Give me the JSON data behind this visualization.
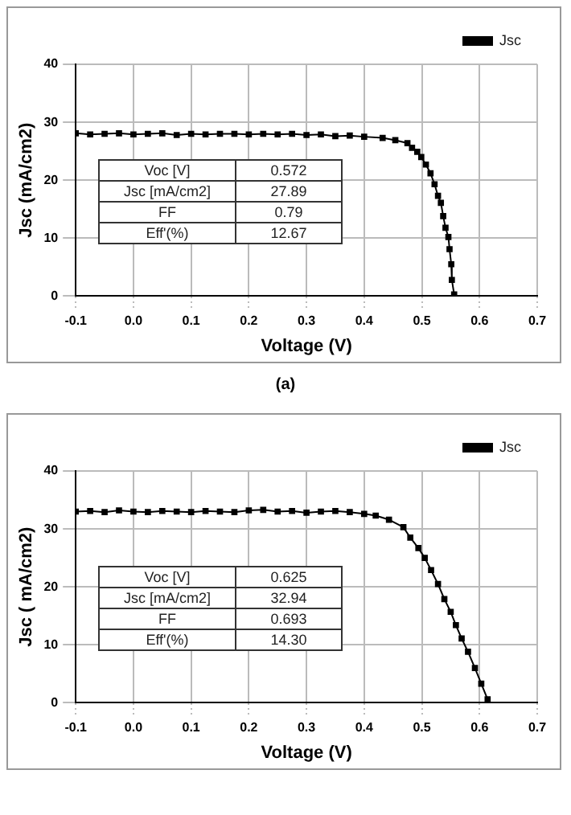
{
  "chart_data": [
    {
      "type": "line",
      "xlabel": "Voltage (V)",
      "ylabel": "Jsc (mA/cm2)",
      "legend": "top right",
      "grid": true,
      "marker": "square",
      "line_style": "solid",
      "xlim": [
        -0.1,
        0.7
      ],
      "ylim": [
        0,
        40
      ],
      "xticks": [
        -0.1,
        {
          "value": 0,
          "label": "0.0"
        },
        0.1,
        0.2,
        0.3,
        0.4,
        0.5,
        0.6,
        0.7
      ],
      "yticks": [
        0,
        10,
        20,
        30,
        40
      ],
      "annotations": [
        "Voc [V]",
        "0.572",
        "Jsc [mA/cm2]",
        "27.89",
        "FF",
        "0.79",
        "Eff'(%)",
        "12.67",
        "(a)"
      ],
      "series": [
        {
          "name": "Jsc",
          "color": "#000000",
          "x": [
            -0.1,
            -0.075,
            -0.05,
            -0.025,
            0,
            0.025,
            0.05,
            0.075,
            0.1,
            0.125,
            0.15,
            0.175,
            0.2,
            0.225,
            0.25,
            0.275,
            0.3,
            0.325,
            0.35,
            0.375,
            0.4,
            0.432,
            0.454,
            0.475,
            0.483,
            0.492,
            0.499,
            0.507,
            0.515,
            0.522,
            0.528,
            0.533,
            0.537,
            0.541,
            0.546,
            0.548,
            0.551,
            0.552,
            0.556
          ],
          "values": [
            28.1,
            27.9,
            28.0,
            28.1,
            27.9,
            28.0,
            28.1,
            27.8,
            28.0,
            27.9,
            28.0,
            28.0,
            27.9,
            28.0,
            27.9,
            28.0,
            27.8,
            27.9,
            27.6,
            27.7,
            27.5,
            27.3,
            26.9,
            26.4,
            25.6,
            24.9,
            24.0,
            22.7,
            21.2,
            19.3,
            17.3,
            16.1,
            13.8,
            11.8,
            10.2,
            8.1,
            5.5,
            2.8,
            0.3
          ]
        }
      ]
    },
    {
      "type": "line",
      "xlabel": "Voltage (V)",
      "ylabel": "Jsc ( mA/cm2)",
      "legend": "top right",
      "grid": true,
      "marker": "square",
      "line_style": "solid",
      "xlim": [
        -0.1,
        0.7
      ],
      "ylim": [
        0,
        40
      ],
      "xticks": [
        -0.1,
        {
          "value": 0,
          "label": "0.0"
        },
        0.1,
        0.2,
        0.3,
        0.4,
        0.5,
        0.6,
        0.7
      ],
      "yticks": [
        0,
        10,
        20,
        30,
        40
      ],
      "annotations": [
        "Voc [V]",
        "0.625",
        "Jsc [mA/cm2]",
        "32.94",
        "FF",
        "0.693",
        "Eff'(%)",
        "14.30"
      ],
      "series": [
        {
          "name": "Jsc",
          "color": "#000000",
          "x": [
            -0.1,
            -0.075,
            -0.05,
            -0.025,
            0,
            0.025,
            0.05,
            0.075,
            0.1,
            0.125,
            0.15,
            0.175,
            0.2,
            0.225,
            0.25,
            0.275,
            0.3,
            0.325,
            0.35,
            0.375,
            0.4,
            0.42,
            0.443,
            0.468,
            0.48,
            0.494,
            0.505,
            0.516,
            0.528,
            0.539,
            0.55,
            0.559,
            0.569,
            0.58,
            0.592,
            0.603,
            0.614
          ],
          "values": [
            33.0,
            33.1,
            32.9,
            33.2,
            33.0,
            32.9,
            33.1,
            33.0,
            32.9,
            33.1,
            33.0,
            32.9,
            33.2,
            33.3,
            33.0,
            33.1,
            32.8,
            33.0,
            33.1,
            32.9,
            32.6,
            32.3,
            31.6,
            30.3,
            28.5,
            26.7,
            25.0,
            22.9,
            20.5,
            17.9,
            15.7,
            13.4,
            11.1,
            8.8,
            6.0,
            3.3,
            0.6
          ]
        }
      ]
    }
  ]
}
